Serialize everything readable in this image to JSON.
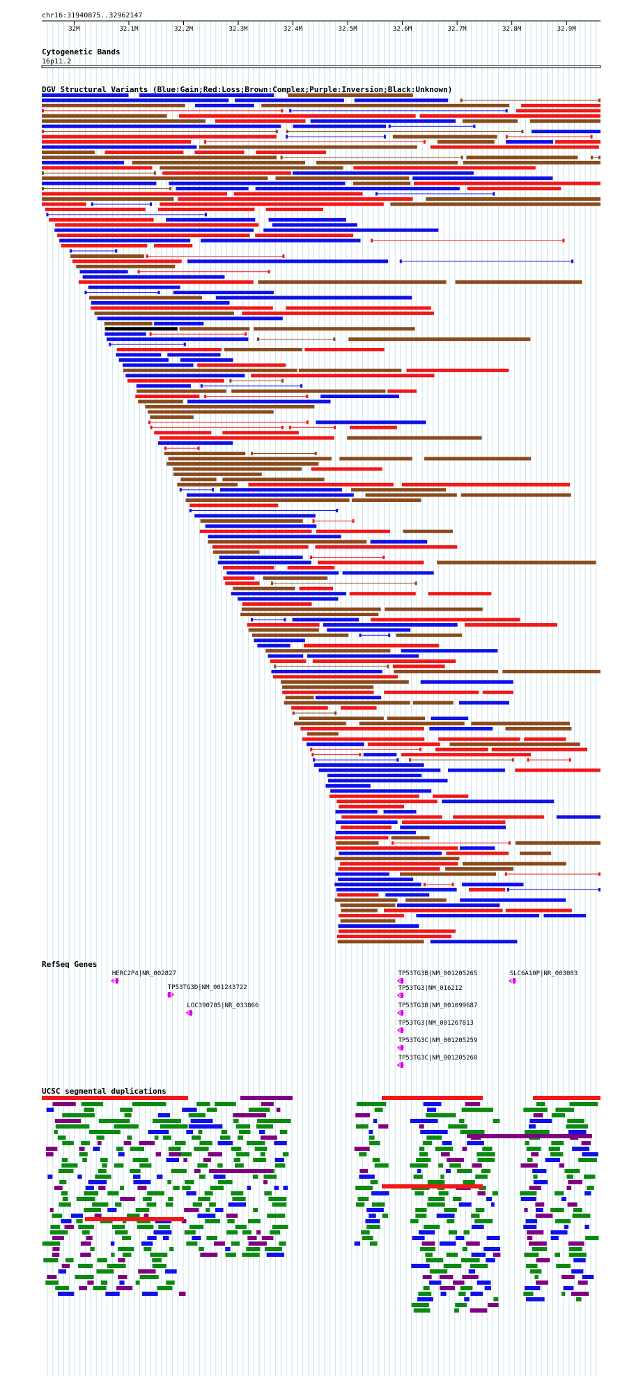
{
  "browser": {
    "position": "chr16:31940875..32962147",
    "view_start_bp": 31940875,
    "view_end_bp": 32962147,
    "ruler_ticks": [
      {
        "bp": 32000000,
        "label": "32M"
      },
      {
        "bp": 32100000,
        "label": "32.1M"
      },
      {
        "bp": 32200000,
        "label": "32.2M"
      },
      {
        "bp": 32300000,
        "label": "32.3M"
      },
      {
        "bp": 32400000,
        "label": "32.4M"
      },
      {
        "bp": 32500000,
        "label": "32.5M"
      },
      {
        "bp": 32600000,
        "label": "32.6M"
      },
      {
        "bp": 32700000,
        "label": "32.7M"
      },
      {
        "bp": 32800000,
        "label": "32.8M"
      },
      {
        "bp": 32900000,
        "label": "32.9M"
      }
    ]
  },
  "tracks": {
    "cytoband": {
      "title": "Cytogenetic Bands",
      "band_name": "16p11.2"
    },
    "dgv": {
      "title": "DGV Structural Variants (Blue:Gain;Red:Loss;Brown:Complex;Purple:Inversion;Black:Unknown)",
      "colors": {
        "gain": "#1010e8",
        "loss": "#f01818",
        "complex": "#8b4a1c",
        "inversion": "#800080",
        "unknown": "#000000"
      }
    },
    "refseq": {
      "title": "RefSeq Genes",
      "color": "#e000e0",
      "genes": [
        {
          "label": "HERC2P4|NR_002827",
          "start_bp": 32068000,
          "end_bp": 32082000,
          "strand": "-"
        },
        {
          "label": "TP53TG3D|NM_001243722",
          "start_bp": 32170000,
          "end_bp": 32182000,
          "strand": "+"
        },
        {
          "label": "LOC390705|NR_033866",
          "start_bp": 32205000,
          "end_bp": 32217000,
          "strand": "-"
        },
        {
          "label": "TP53TG3B|NM_001205265",
          "start_bp": 32591000,
          "end_bp": 32603000,
          "strand": "-"
        },
        {
          "label": "TP53TG3|NM_016212",
          "start_bp": 32591000,
          "end_bp": 32603000,
          "strand": "-"
        },
        {
          "label": "TP53TG3B|NM_001099687",
          "start_bp": 32591000,
          "end_bp": 32603000,
          "strand": "-"
        },
        {
          "label": "TP53TG3|NM_001267813",
          "start_bp": 32591000,
          "end_bp": 32603000,
          "strand": "-"
        },
        {
          "label": "TP53TG3C|NM_001205259",
          "start_bp": 32591000,
          "end_bp": 32603000,
          "strand": "-"
        },
        {
          "label": "TP53TG3C|NM_001205260",
          "start_bp": 32591000,
          "end_bp": 32603000,
          "strand": "-"
        },
        {
          "label": "SLC6A10P|NR_003083",
          "start_bp": 32795000,
          "end_bp": 32808000,
          "strand": "-"
        }
      ]
    },
    "segdups": {
      "title": "UCSC segmental duplications",
      "colors": {
        "red": "#f01818",
        "green": "#0c8a10",
        "blue": "#1010e8",
        "purple": "#800080"
      }
    }
  }
}
